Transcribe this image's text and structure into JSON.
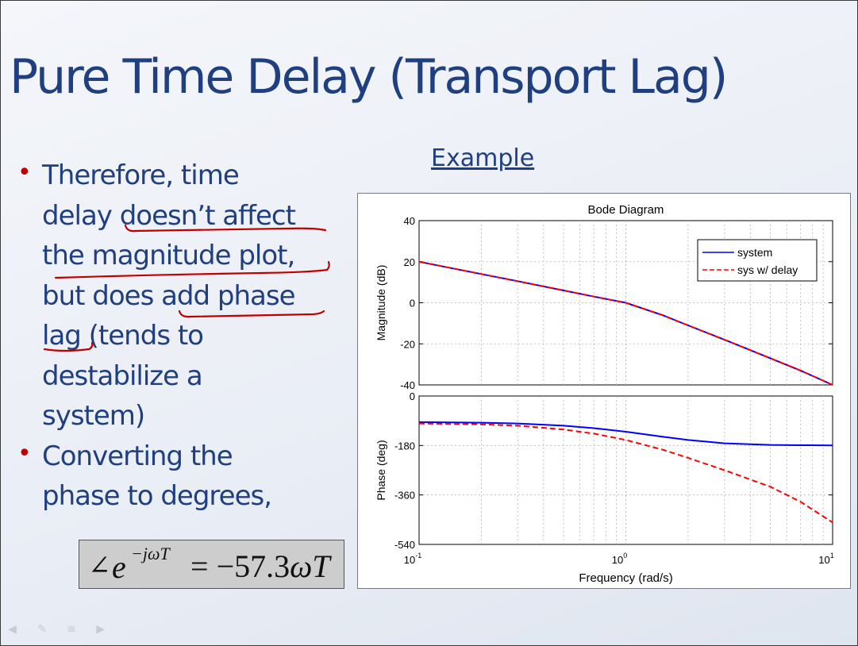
{
  "slide": {
    "title": "Pure Time Delay (Transport Lag)",
    "example_label": "Example",
    "bullets": [
      "Therefore, time\ndelay doesn’t affect\nthe magnitude plot,\nbut does add phase\nlag (tends to\ndestabilize a\nsystem)",
      "Converting the\nphase to degrees,"
    ],
    "formula": {
      "angle": "∠",
      "base": "e",
      "exponent": "−jωT",
      "equals": "=",
      "coefficient": "−57.3",
      "omega": "ω",
      "T": "T"
    },
    "annotation_color": "#c00000",
    "text_color": "#1f3f80"
  },
  "chart_data": [
    {
      "type": "line",
      "title": "Bode Diagram",
      "xlabel": "",
      "ylabel": "Magnitude (dB)",
      "xscale": "log",
      "xlim": [
        0.1,
        10
      ],
      "ylim": [
        -40,
        40
      ],
      "yticks": [
        40,
        20,
        0,
        -20,
        -40
      ],
      "grid": true,
      "legend": "top-right",
      "x": [
        0.1,
        0.2,
        0.3,
        0.5,
        0.7,
        1.0,
        1.5,
        2.0,
        3.0,
        5.0,
        7.0,
        10.0
      ],
      "series": [
        {
          "name": "system",
          "color": "#0000ff",
          "style": "solid",
          "values": [
            20,
            14,
            10.5,
            6,
            3,
            0,
            -6,
            -11,
            -18,
            -27,
            -33,
            -40
          ]
        },
        {
          "name": "sys w/ delay",
          "color": "#ff0000",
          "style": "dashed",
          "values": [
            20,
            14,
            10.5,
            6,
            3,
            0,
            -6,
            -11,
            -18,
            -27,
            -33,
            -40
          ]
        }
      ]
    },
    {
      "type": "line",
      "xlabel": "Frequency  (rad/s)",
      "ylabel": "Phase (deg)",
      "xscale": "log",
      "xlim": [
        0.1,
        10
      ],
      "ylim": [
        -540,
        0
      ],
      "yticks": [
        0,
        -180,
        -360,
        -540
      ],
      "xticks": [
        {
          "base": "10",
          "exp": "-1"
        },
        {
          "base": "10",
          "exp": "0"
        },
        {
          "base": "10",
          "exp": "1"
        }
      ],
      "grid": true,
      "x": [
        0.1,
        0.2,
        0.3,
        0.5,
        0.7,
        1.0,
        1.5,
        2.0,
        3.0,
        5.0,
        7.0,
        10.0
      ],
      "series": [
        {
          "name": "system",
          "color": "#0000ff",
          "style": "solid",
          "values": [
            -95,
            -97,
            -100,
            -108,
            -117,
            -130,
            -148,
            -160,
            -172,
            -178,
            -179,
            -180
          ]
        },
        {
          "name": "sys w/ delay",
          "color": "#ff0000",
          "style": "dashed",
          "values": [
            -100,
            -103,
            -108,
            -122,
            -137,
            -160,
            -195,
            -225,
            -270,
            -330,
            -385,
            -460
          ]
        }
      ]
    }
  ]
}
